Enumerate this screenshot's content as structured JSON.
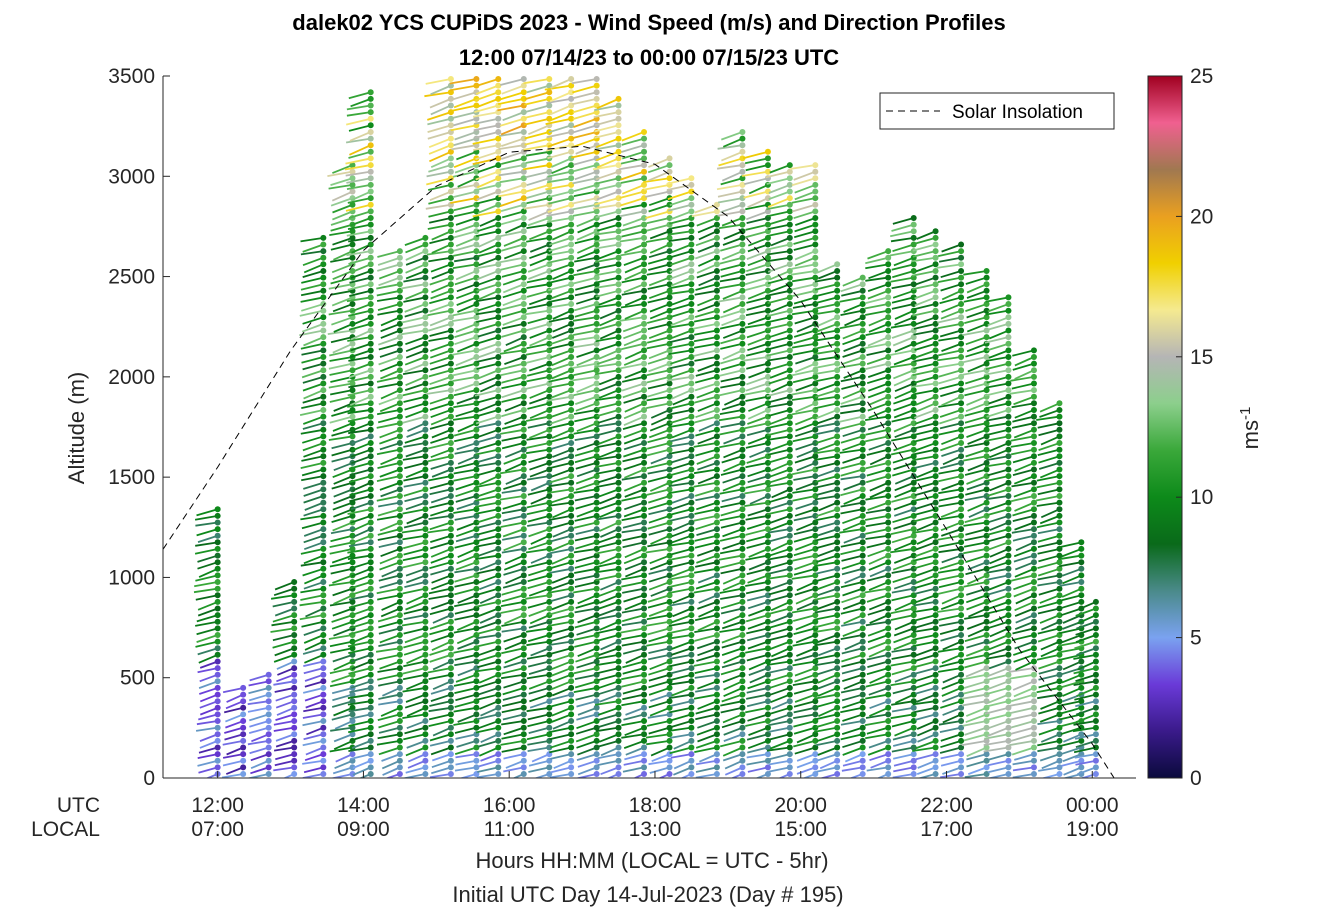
{
  "chart_data": {
    "type": "scatter",
    "title": "dalek02 YCS CUPiDS 2023 - Wind Speed (m/s) and Direction Profiles",
    "subtitle": "12:00 07/14/23 to 00:00 07/15/23  UTC",
    "ylabel": "Altitude (m)",
    "xlabel": "Hours HH:MM  (LOCAL = UTC - 5hr)",
    "xlabel2": "Initial UTC Day 14-Jul-2023 (Day # 195)",
    "x_axis_row_labels": [
      "UTC",
      "LOCAL"
    ],
    "xlim_hours_utc": [
      11.25,
      24.6
    ],
    "ylim": [
      0,
      3500
    ],
    "yticks": [
      "0",
      "500",
      "1000",
      "1500",
      "2000",
      "2500",
      "3000",
      "3500"
    ],
    "xticks_utc": [
      "12:00",
      "14:00",
      "16:00",
      "18:00",
      "20:00",
      "22:00",
      "00:00"
    ],
    "xticks_local": [
      "07:00",
      "09:00",
      "11:00",
      "13:00",
      "15:00",
      "17:00",
      "19:00"
    ],
    "xtick_hours": [
      12,
      14,
      16,
      18,
      20,
      22,
      24
    ],
    "legend": {
      "label": "Solar Insolation",
      "position": "top-right"
    },
    "colorbar": {
      "label": "ms-1",
      "label_base": "ms",
      "label_exp": "-1",
      "range": [
        0,
        25
      ],
      "ticks": [
        "0",
        "5",
        "10",
        "15",
        "20",
        "25"
      ],
      "colors": [
        "#0a0a3c",
        "#3a1a8a",
        "#6a3ad8",
        "#7aa2f0",
        "#4a8a8a",
        "#0a6a1a",
        "#0d8a1a",
        "#3aa83a",
        "#8ccf8c",
        "#b5b5b5",
        "#f5ea90",
        "#f0d000",
        "#eaa020",
        "#a07850",
        "#f06090",
        "#a00020"
      ]
    },
    "solar_insolation": {
      "x_hours_utc": [
        11.25,
        12.0,
        13.0,
        14.0,
        15.0,
        16.0,
        17.0,
        18.0,
        19.0,
        20.0,
        21.0,
        22.0,
        23.0,
        24.0,
        24.3
      ],
      "y_m": [
        1140,
        1550,
        2130,
        2630,
        2950,
        3120,
        3150,
        3060,
        2800,
        2380,
        1830,
        1240,
        640,
        170,
        0
      ]
    },
    "profile_times_utc": [
      12.0,
      12.35,
      12.7,
      13.05,
      13.45,
      13.85,
      14.1,
      14.5,
      14.85,
      15.2,
      15.55,
      15.85,
      16.2,
      16.55,
      16.85,
      17.2,
      17.5,
      17.85,
      18.2,
      18.5,
      18.85,
      19.2,
      19.55,
      19.85,
      20.2,
      20.5,
      20.85,
      21.2,
      21.55,
      21.85,
      22.2,
      22.55,
      22.85,
      23.2,
      23.55,
      23.85,
      24.05
    ],
    "profile_top_m": [
      1360,
      480,
      520,
      1000,
      2700,
      3080,
      3420,
      2650,
      2720,
      3500,
      3500,
      3500,
      3500,
      3500,
      3500,
      3500,
      3400,
      3230,
      3090,
      3000,
      2860,
      3250,
      3150,
      3080,
      3060,
      2570,
      2520,
      2630,
      2800,
      2740,
      2690,
      2560,
      2400,
      2160,
      1900,
      1200,
      900
    ]
  }
}
